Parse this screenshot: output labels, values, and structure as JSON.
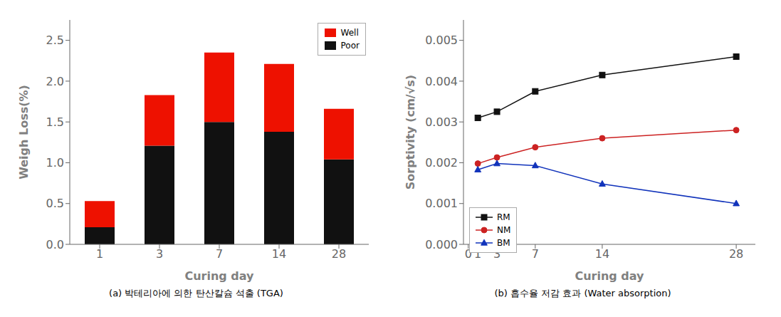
{
  "chart_data": [
    {
      "type": "bar",
      "stacked": true,
      "title": "(a) 박테리아에 의한 탄산칼슘 석출 (TGA)",
      "categories": [
        "1",
        "3",
        "7",
        "14",
        "28"
      ],
      "series": [
        {
          "name": "Poor",
          "color": "#111111",
          "values": [
            0.21,
            1.21,
            1.5,
            1.38,
            1.04
          ]
        },
        {
          "name": "Well",
          "color": "#ee1100",
          "values": [
            0.32,
            0.62,
            0.85,
            0.83,
            0.62
          ]
        }
      ],
      "xlabel": "Curing day",
      "ylabel": "Weigh Loss(%)",
      "ylim": [
        0,
        2.75
      ],
      "yticks": [
        {
          "value": 0.0,
          "label": "0.0"
        },
        0.5,
        {
          "value": 1.0,
          "label": "1.0"
        },
        1.5,
        {
          "value": 2.0,
          "label": "2.0"
        },
        2.5
      ],
      "grid": false,
      "legend": "upper right"
    },
    {
      "type": "line",
      "title": "(b) 흡수율 저감 효과 (Water absorption)",
      "x": [
        1,
        3,
        7,
        14,
        28
      ],
      "series": [
        {
          "name": "RM",
          "color": "#111111",
          "marker": "square",
          "values": [
            0.0031,
            0.00325,
            0.00375,
            0.00415,
            0.0046
          ]
        },
        {
          "name": "NM",
          "color": "#cc2222",
          "marker": "circle",
          "values": [
            0.00198,
            0.00213,
            0.00238,
            0.0026,
            0.0028
          ]
        },
        {
          "name": "BM",
          "color": "#1133bb",
          "marker": "triangle",
          "values": [
            0.00183,
            0.00198,
            0.00193,
            0.00148,
            0.001
          ]
        }
      ],
      "xlabel": "Curing day",
      "ylabel": "Sorptivity  (cm/√s)",
      "xlim": [
        -0.5,
        30
      ],
      "xticks": [
        0,
        1,
        3,
        7,
        14,
        28
      ],
      "ylim": [
        0,
        0.0055
      ],
      "yticks": [
        {
          "value": 0.0,
          "label": "0.000"
        },
        {
          "value": 0.001,
          "label": "0.001"
        },
        {
          "value": 0.002,
          "label": "0.002"
        },
        {
          "value": 0.003,
          "label": "0.003"
        },
        {
          "value": 0.004,
          "label": "0.004"
        },
        {
          "value": 0.005,
          "label": "0.005"
        }
      ],
      "grid": false,
      "legend": "lower left"
    }
  ]
}
